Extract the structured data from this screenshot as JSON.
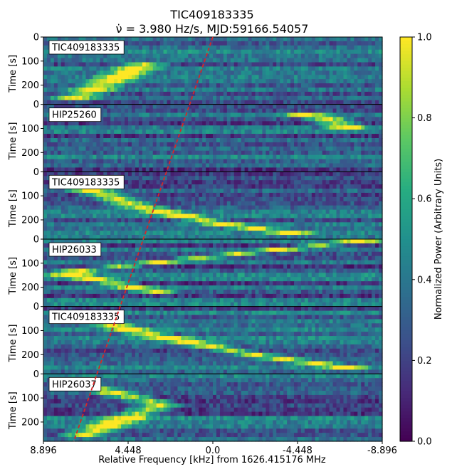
{
  "chart_data": {
    "type": "heatmap",
    "title": "TIC409183335",
    "subtitle": "ν̇ = 3.980 Hz/s, MJD:59166.54057",
    "xlabel": "Relative Frequency [kHz] from 1626.415176 MHz",
    "ylabel": "Time [s]",
    "x_tick_labels": [
      "8.896",
      "4.448",
      "0.0",
      "-4.448",
      "-8.896"
    ],
    "xlim": [
      8.896,
      -8.896
    ],
    "ylim": [
      0,
      280
    ],
    "y_tick_labels_first_panel": [
      "0",
      "100",
      "200"
    ],
    "y_tick_labels_other_panels": [
      "0",
      "100",
      "200"
    ],
    "y_tick_labels_last_panel": [
      "0",
      "100",
      "200"
    ],
    "panels": [
      {
        "label": "TIC409183335",
        "ridge": [
          [
            0.4,
            0.3
          ],
          [
            0.7,
            0.18
          ],
          [
            0.92,
            0.09
          ]
        ],
        "ridge_start_frac": 0.25
      },
      {
        "label": "HIP25260",
        "ridge": [
          [
            0.1,
            0.7
          ],
          [
            0.2,
            0.83
          ],
          [
            0.35,
            0.9
          ]
        ],
        "ridge_start_frac": 0.0
      },
      {
        "label": "TIC409183335",
        "ridge": [
          [
            0.2,
            0.1
          ],
          [
            0.55,
            0.3
          ],
          [
            0.8,
            0.55
          ],
          [
            0.95,
            0.8
          ]
        ],
        "ridge_start_frac": 0.1
      },
      {
        "label": "HIP26033",
        "ridge": [
          [
            0.02,
            0.95
          ],
          [
            0.5,
            0.05
          ],
          [
            0.8,
            0.35
          ]
        ],
        "ridge_start_frac": 0.0
      },
      {
        "label": "TIC409183335",
        "ridge": [
          [
            0.15,
            0.1
          ],
          [
            0.4,
            0.3
          ],
          [
            0.7,
            0.6
          ],
          [
            0.95,
            0.95
          ]
        ],
        "ridge_start_frac": 0.05
      },
      {
        "label": "HIP26037",
        "ridge": [
          [
            0.1,
            0.05
          ],
          [
            0.45,
            0.35
          ],
          [
            0.95,
            0.1
          ]
        ],
        "ridge_start_frac": 0.0
      }
    ],
    "drift_line": {
      "color": "#d62728",
      "style": "dashed",
      "x_top_kHz": 0.0,
      "x_bottom_kHz": 7.3
    },
    "colorbar": {
      "label": "Normalized Power (Arbitrary Units)",
      "ticks": [
        "0.0",
        "0.2",
        "0.4",
        "0.6",
        "0.8",
        "1.0"
      ],
      "range": [
        0.0,
        1.0
      ],
      "colormap": "viridis"
    }
  }
}
